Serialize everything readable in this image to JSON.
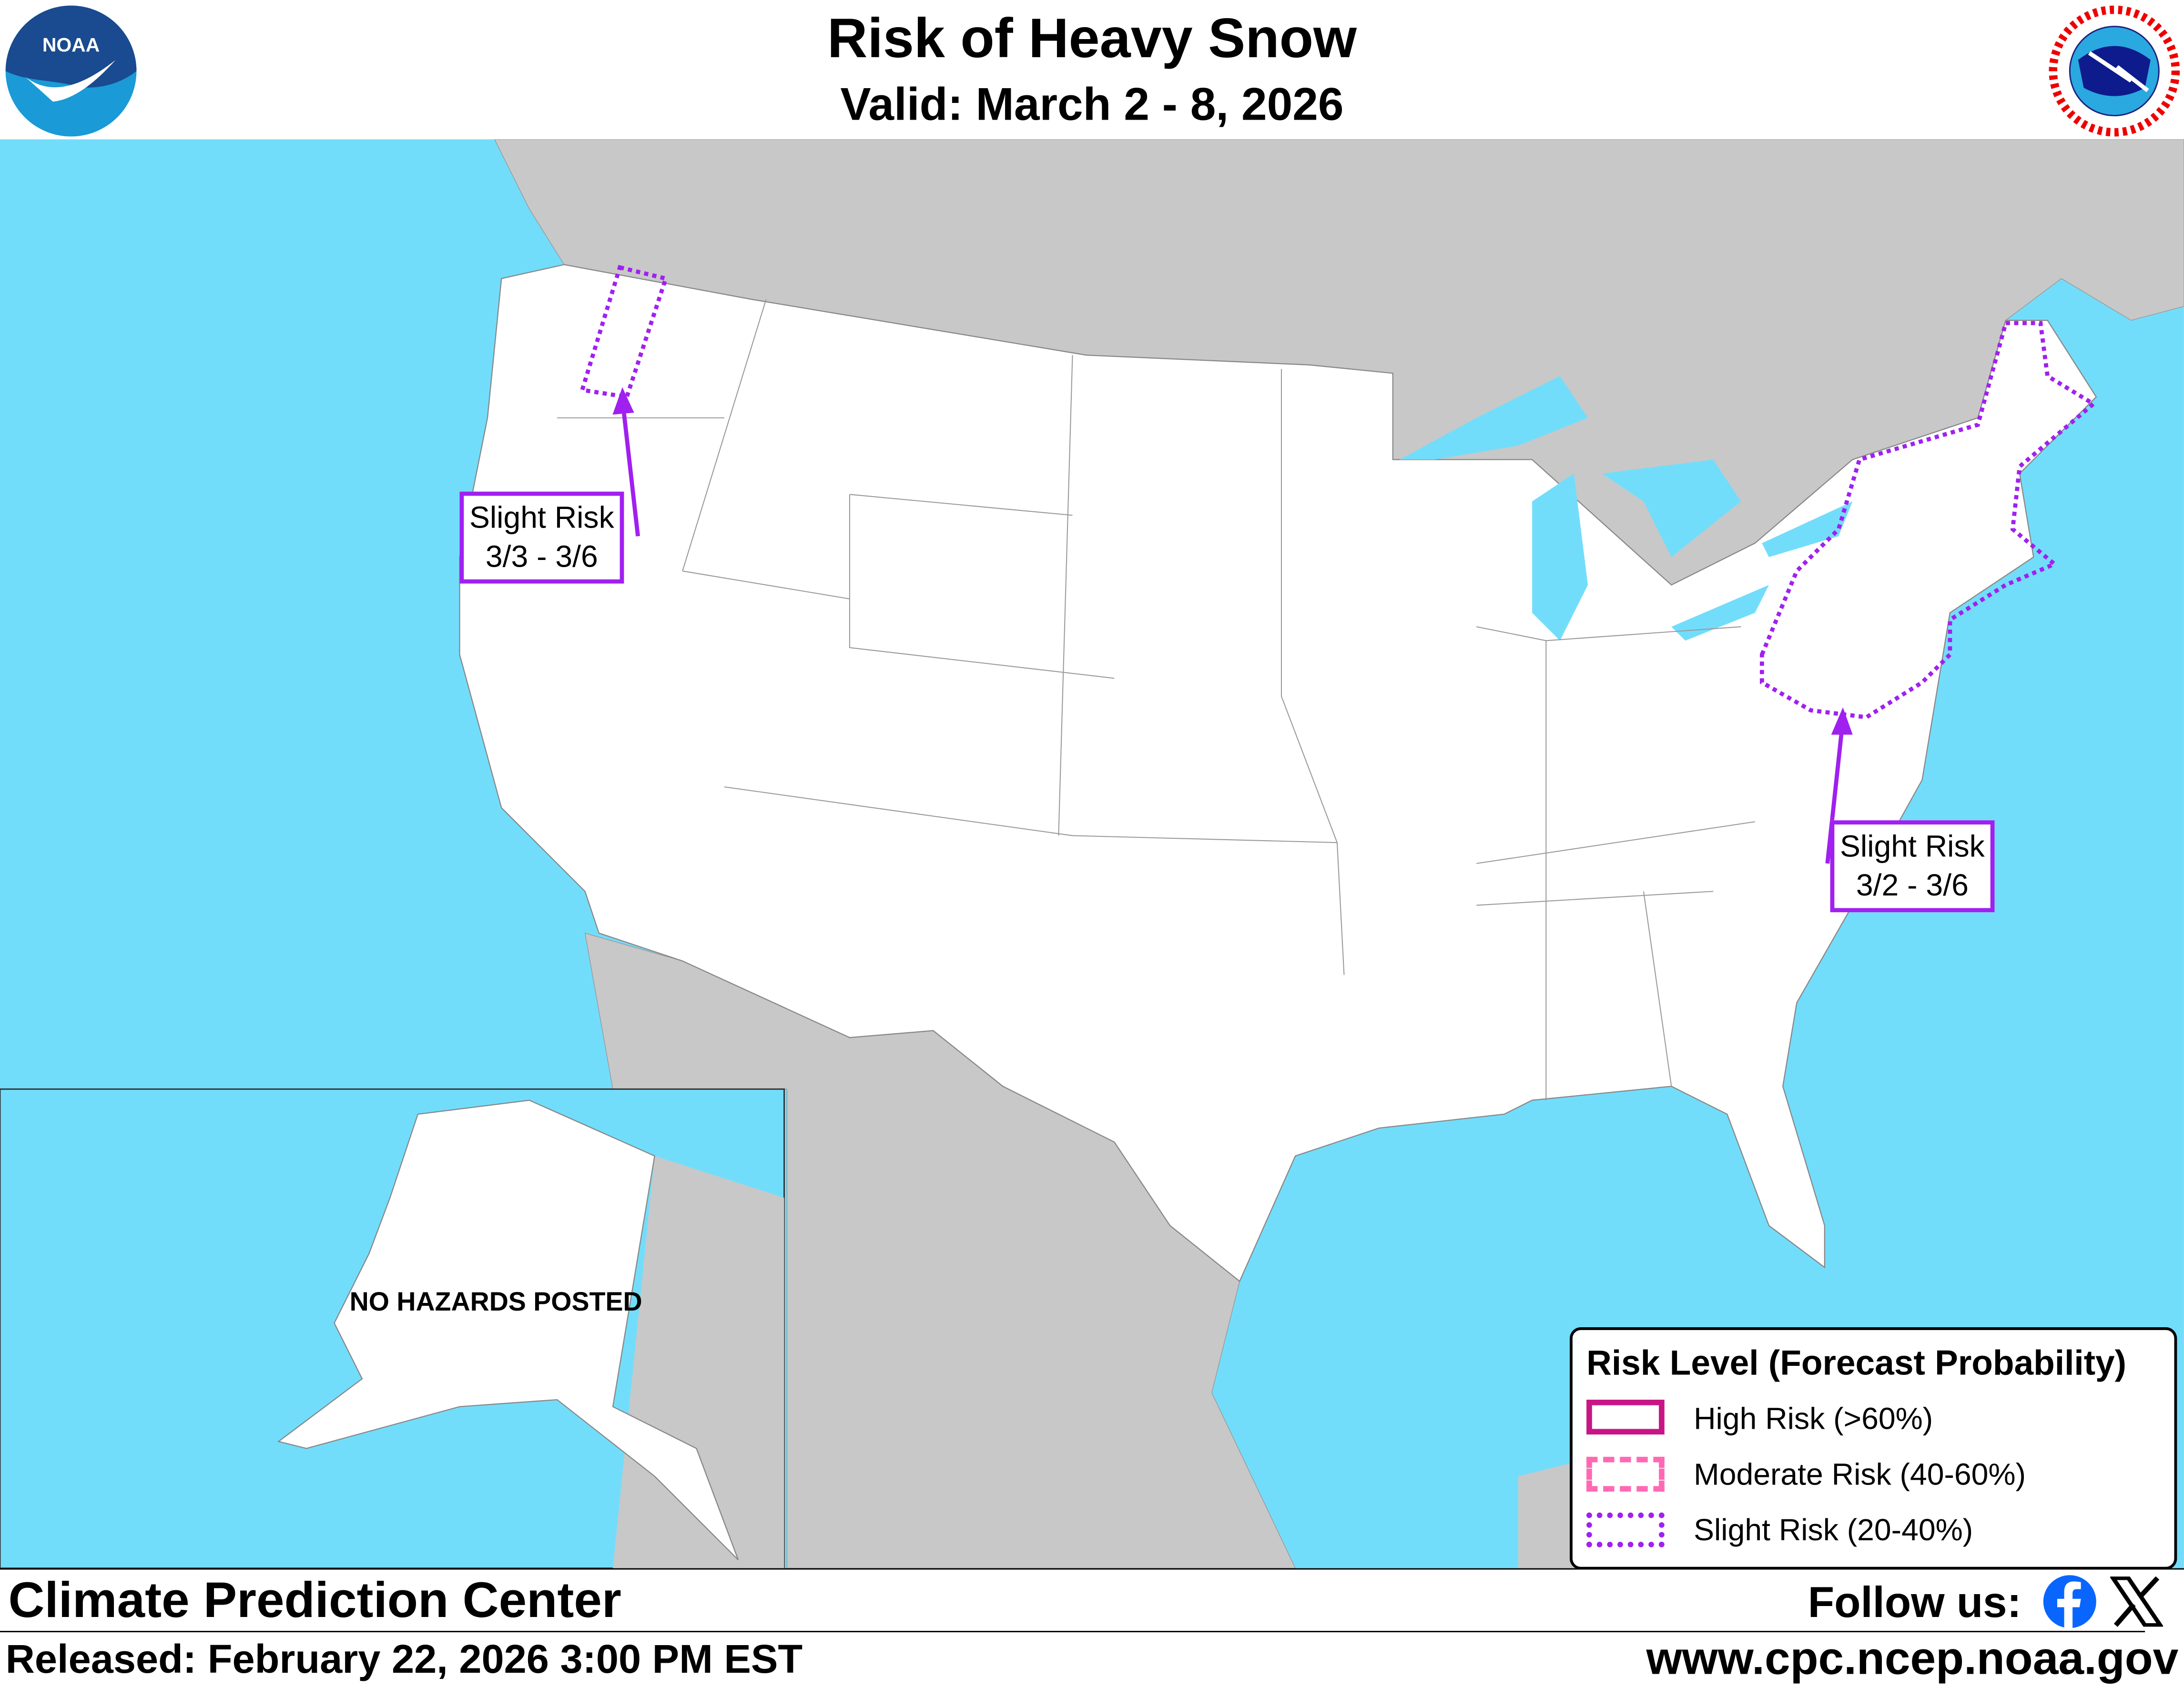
{
  "header": {
    "title": "Risk of Heavy Snow",
    "subtitle": "Valid: March 2 - 8, 2026",
    "left_logo": "NOAA",
    "right_logo": "NATIONAL WEATHER SERVICE"
  },
  "map": {
    "colors": {
      "ocean": "#72ddfb",
      "foreign_land": "#c8c8c8",
      "us_land": "#ffffff",
      "slight_risk": "#a020f0",
      "moderate_risk": "#ff69b4",
      "high_risk": "#c71585"
    },
    "callouts": [
      {
        "line1": "Slight Risk",
        "line2": "3/3 - 3/6"
      },
      {
        "line1": "Slight Risk",
        "line2": "3/2 - 3/6"
      }
    ],
    "alaska_note": "NO HAZARDS POSTED"
  },
  "legend": {
    "title": "Risk Level (Forecast Probability)",
    "items": [
      {
        "label": "High Risk (>60%)",
        "style": "solid",
        "color": "#c71585"
      },
      {
        "label": "Moderate Risk (40-60%)",
        "style": "dashed",
        "color": "#ff69b4"
      },
      {
        "label": "Slight Risk (20-40%)",
        "style": "dotted",
        "color": "#a020f0"
      }
    ]
  },
  "footer": {
    "org": "Climate Prediction Center",
    "released": "Released: February 22, 2026 3:00 PM EST",
    "follow": "Follow us:",
    "url": "www.cpc.ncep.noaa.gov",
    "social": [
      "facebook-icon",
      "x-icon"
    ]
  }
}
